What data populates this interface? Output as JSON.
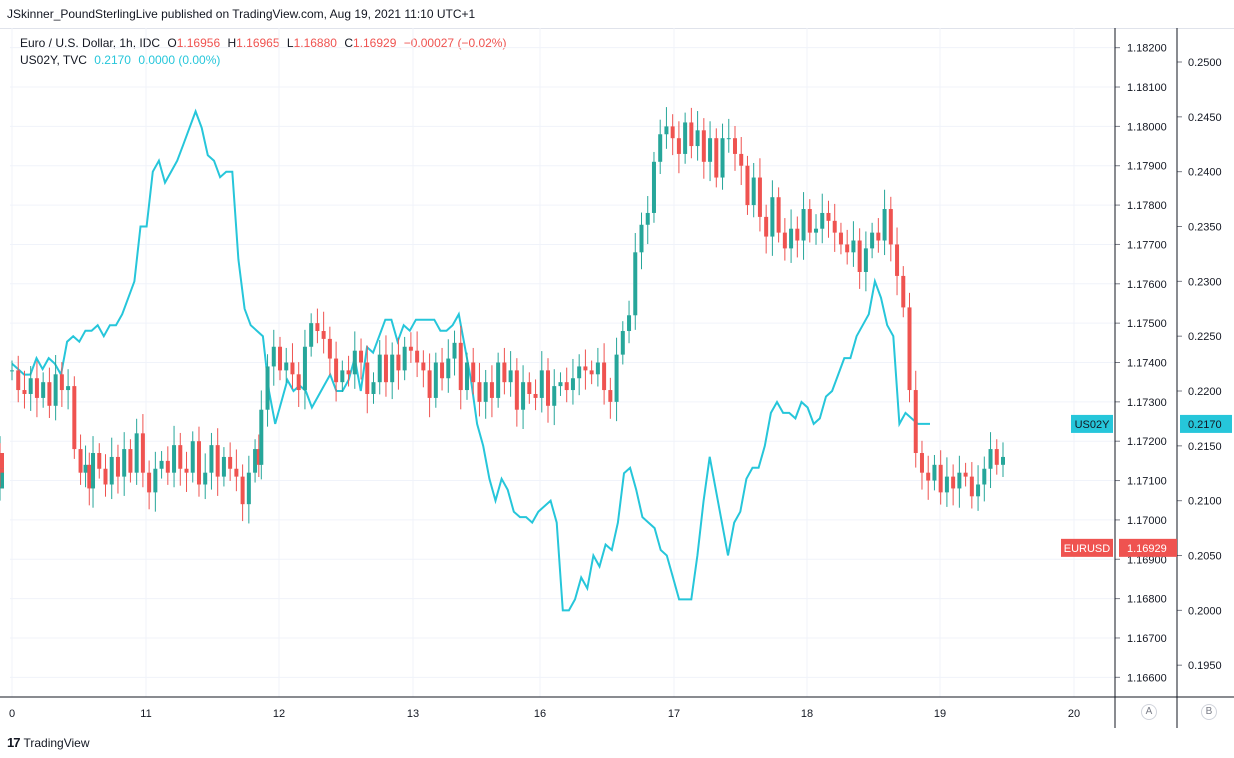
{
  "header": {
    "publisher_line": "JSkinner_PoundSterlingLive published on TradingView.com, Aug 19, 2021 11:10 UTC+1"
  },
  "legend": {
    "main": {
      "symbol": "Euro / U.S. Dollar, 1h, IDC",
      "o_label": "O",
      "o": "1.16956",
      "h_label": "H",
      "h": "1.16965",
      "l_label": "L",
      "l": "1.16880",
      "c_label": "C",
      "c": "1.16929",
      "change": "−0.00027 (−0.02%)"
    },
    "compare": {
      "symbol": "US02Y, TVC",
      "value": "0.2170",
      "change": "0.0000 (0.00%)"
    }
  },
  "footer": {
    "brand": "TradingView",
    "logo": "17"
  },
  "scale_buttons": {
    "a": "A",
    "b": "B"
  },
  "colors": {
    "up": "#26a69a",
    "down": "#ef5350",
    "line": "#26c6da",
    "grid": "#f0f3fa",
    "axis": "#787b86"
  },
  "chart_data": {
    "type": "candlestick",
    "title": "Euro / U.S. Dollar, 1h, IDC",
    "x_ticks": [
      "0",
      "11",
      "12",
      "13",
      "16",
      "17",
      "18",
      "19",
      "20"
    ],
    "y_right_axis": {
      "name": "EURUSD",
      "range": [
        1.1655,
        1.1825
      ],
      "ticks": [
        "1.18200",
        "1.18100",
        "1.18000",
        "1.17900",
        "1.17800",
        "1.17700",
        "1.17600",
        "1.17500",
        "1.17400",
        "1.17300",
        "1.17200",
        "1.17100",
        "1.17000",
        "1.16900",
        "1.16800",
        "1.16700",
        "1.16600"
      ],
      "last_label": "EURUSD",
      "last_value": "1.16929"
    },
    "y_left_axis": {
      "name": "US02Y",
      "range": [
        0.1921,
        0.2531
      ],
      "ticks": [
        "0.2500",
        "0.2450",
        "0.2400",
        "0.2350",
        "0.2300",
        "0.2250",
        "0.2200",
        "0.2150",
        "0.2100",
        "0.2050",
        "0.2000",
        "0.1950"
      ],
      "last_label": "US02Y",
      "last_value": "0.2170"
    },
    "series": [
      {
        "name": "EURUSD",
        "kind": "candlestick",
        "close_path_x": [
          0,
          0.5,
          1,
          1.5,
          2,
          2.5,
          3,
          3.5,
          4,
          4.5,
          5,
          5.5,
          5.9,
          6.2,
          6.5,
          7,
          7.5,
          8,
          8.5,
          9,
          9.5,
          10,
          10.5,
          11,
          11.5,
          12,
          12.5,
          13,
          13.5,
          14,
          14.5,
          15,
          15.5,
          16,
          16.5,
          17,
          17.5,
          18,
          18.5,
          19,
          19.5,
          19.8,
          20,
          20.5,
          21,
          21.5,
          22,
          22.5,
          23,
          23.5,
          24,
          24.5,
          25,
          25.5,
          26,
          26.5,
          27,
          27.5,
          28,
          28.5,
          29,
          29.5,
          30,
          30.5,
          31,
          31.5,
          32,
          32.5,
          33,
          33.5,
          34,
          34.5,
          35,
          35.5,
          36,
          36.5,
          37,
          37.5,
          38,
          38.5,
          39,
          39.5,
          40,
          40.5,
          41,
          41.5,
          42,
          42.5,
          43,
          43.5,
          44,
          44.5,
          45,
          45.5,
          46,
          46.5,
          47,
          47.5,
          48,
          48.5,
          49,
          49.5,
          50,
          50.5,
          51,
          51.5,
          52,
          52.5,
          53,
          53.5,
          54,
          54.5,
          55,
          55.5,
          56,
          56.5,
          57,
          57.5,
          58,
          58.5,
          59,
          59.5,
          60,
          60.5,
          61,
          61.5,
          62,
          62.5,
          63,
          63.5,
          64,
          64.5,
          65,
          65.5,
          66,
          66.5,
          67,
          67.5,
          68,
          68.5,
          69,
          69.5,
          70,
          70.5,
          71,
          71.5,
          72,
          72.5,
          73,
          73.5,
          74,
          74.5,
          75,
          75.5,
          76,
          76.5,
          77,
          77.5,
          78,
          78.5,
          79,
          79.5
        ],
        "close_path_y": [
          1.1738,
          1.1733,
          1.1732,
          1.1736,
          1.1731,
          1.1735,
          1.1729,
          1.1737,
          1.1733,
          1.1734,
          1.1718,
          1.1712,
          1.1714,
          1.1708,
          1.1717,
          1.1713,
          1.1709,
          1.1716,
          1.1711,
          1.1718,
          1.1712,
          1.1722,
          1.1712,
          1.1707,
          1.1713,
          1.1715,
          1.1712,
          1.1719,
          1.1713,
          1.1712,
          1.172,
          1.1709,
          1.1712,
          1.1719,
          1.1711,
          1.1716,
          1.1713,
          1.1711,
          1.1704,
          1.1712,
          1.1718,
          1.1714,
          1.1728,
          1.1739,
          1.1744,
          1.1738,
          1.174,
          1.1737,
          1.1733,
          1.1744,
          1.175,
          1.1748,
          1.1746,
          1.1741,
          1.1735,
          1.1738,
          1.1737,
          1.1743,
          1.174,
          1.1732,
          1.1735,
          1.1742,
          1.1735,
          1.1742,
          1.1738,
          1.1744,
          1.1743,
          1.174,
          1.1738,
          1.1731,
          1.174,
          1.1736,
          1.1741,
          1.1745,
          1.1733,
          1.174,
          1.1735,
          1.173,
          1.1735,
          1.1731,
          1.174,
          1.1735,
          1.1738,
          1.1728,
          1.1735,
          1.1732,
          1.1731,
          1.1738,
          1.1729,
          1.1734,
          1.1735,
          1.1733,
          1.1736,
          1.1739,
          1.1738,
          1.1737,
          1.174,
          1.1733,
          1.173,
          1.1742,
          1.1748,
          1.1752,
          1.1768,
          1.1775,
          1.1778,
          1.1791,
          1.1798,
          1.18,
          1.1797,
          1.1793,
          1.1801,
          1.1795,
          1.1799,
          1.1791,
          1.1797,
          1.1787,
          1.1797,
          1.1797,
          1.1793,
          1.179,
          1.178,
          1.1787,
          1.1777,
          1.1772,
          1.1782,
          1.1773,
          1.1769,
          1.1774,
          1.1771,
          1.1779,
          1.1773,
          1.1774,
          1.1778,
          1.1776,
          1.1773,
          1.177,
          1.1768,
          1.1771,
          1.1763,
          1.1769,
          1.1773,
          1.1771,
          1.1779,
          1.177,
          1.1762,
          1.1754,
          1.1733,
          1.1717,
          1.1712,
          1.171,
          1.1714,
          1.1707,
          1.1711,
          1.1708,
          1.1712,
          1.1711,
          1.1706,
          1.1709,
          1.1713,
          1.1718,
          1.1714,
          1.1716,
          1.1713,
          1.1713,
          1.1717,
          1.1708,
          1.1713,
          1.1712
        ],
        "note": "hourly OHLC candles; values read approximately"
      },
      {
        "name": "US02Y",
        "kind": "line",
        "x": [
          0,
          1,
          2,
          3,
          4,
          5,
          6,
          7,
          8,
          9,
          10,
          11,
          12,
          13,
          14,
          15,
          16,
          17,
          18,
          19,
          20,
          21,
          22,
          23,
          24,
          25,
          26,
          27,
          28,
          29,
          30,
          31,
          32,
          33,
          34,
          35,
          36,
          37,
          38,
          39,
          40,
          41,
          42,
          43,
          44,
          45,
          46,
          47,
          48,
          49,
          50,
          51,
          52,
          53,
          54,
          55,
          56,
          57,
          58,
          59,
          60,
          61,
          62,
          63,
          64,
          65,
          66,
          67,
          68,
          69,
          70,
          71,
          72,
          73,
          74,
          75,
          76,
          77,
          78,
          79,
          80,
          81,
          82,
          83,
          84,
          85,
          86,
          87,
          88,
          89,
          90,
          91,
          92,
          93,
          94,
          95,
          96,
          97,
          98,
          99,
          100,
          101,
          102,
          103,
          104,
          105,
          106,
          107,
          108,
          109,
          110,
          111,
          112,
          113,
          114,
          115,
          116,
          117,
          118,
          119,
          120,
          121,
          122,
          123,
          124,
          125,
          126,
          127,
          128,
          129,
          130,
          131,
          132,
          133,
          134,
          135,
          136,
          137,
          138,
          139,
          140,
          141,
          142,
          143,
          144,
          145,
          146,
          147,
          148,
          149,
          150
        ],
        "y": [
          0.2225,
          0.222,
          0.2215,
          0.2215,
          0.223,
          0.222,
          0.223,
          0.2225,
          0.2215,
          0.2245,
          0.225,
          0.2245,
          0.2255,
          0.2255,
          0.226,
          0.225,
          0.226,
          0.226,
          0.227,
          0.2285,
          0.23,
          0.235,
          0.235,
          0.24,
          0.241,
          0.239,
          0.24,
          0.241,
          0.2425,
          0.244,
          0.2455,
          0.244,
          0.2415,
          0.241,
          0.2395,
          0.24,
          0.24,
          0.232,
          0.2275,
          0.226,
          0.2255,
          0.225,
          0.22,
          0.217,
          0.219,
          0.221,
          0.22,
          0.2205,
          0.22,
          0.2185,
          0.2195,
          0.2205,
          0.2215,
          0.22,
          0.22,
          0.221,
          0.223,
          0.22,
          0.224,
          0.2235,
          0.225,
          0.2265,
          0.2265,
          0.2245,
          0.226,
          0.2255,
          0.2265,
          0.2265,
          0.2265,
          0.2265,
          0.2255,
          0.2255,
          0.226,
          0.227,
          0.224,
          0.221,
          0.217,
          0.215,
          0.212,
          0.21,
          0.212,
          0.211,
          0.209,
          0.2085,
          0.2085,
          0.208,
          0.209,
          0.2095,
          0.21,
          0.208,
          0.2,
          0.2,
          0.201,
          0.203,
          0.202,
          0.205,
          0.204,
          0.206,
          0.2055,
          0.208,
          0.2125,
          0.213,
          0.211,
          0.2085,
          0.208,
          0.2075,
          0.2055,
          0.205,
          0.203,
          0.201,
          0.201,
          0.201,
          0.205,
          0.21,
          0.214,
          0.211,
          0.208,
          0.205,
          0.208,
          0.209,
          0.212,
          0.213,
          0.213,
          0.215,
          0.218,
          0.219,
          0.218,
          0.218,
          0.2175,
          0.219,
          0.2185,
          0.217,
          0.2175,
          0.2195,
          0.22,
          0.2215,
          0.223,
          0.223,
          0.225,
          0.226,
          0.227,
          0.23,
          0.2285,
          0.226,
          0.225,
          0.217,
          0.218,
          0.2175,
          0.217,
          0.217,
          0.217
        ]
      }
    ],
    "grid": true,
    "legend_position": "top-left"
  }
}
